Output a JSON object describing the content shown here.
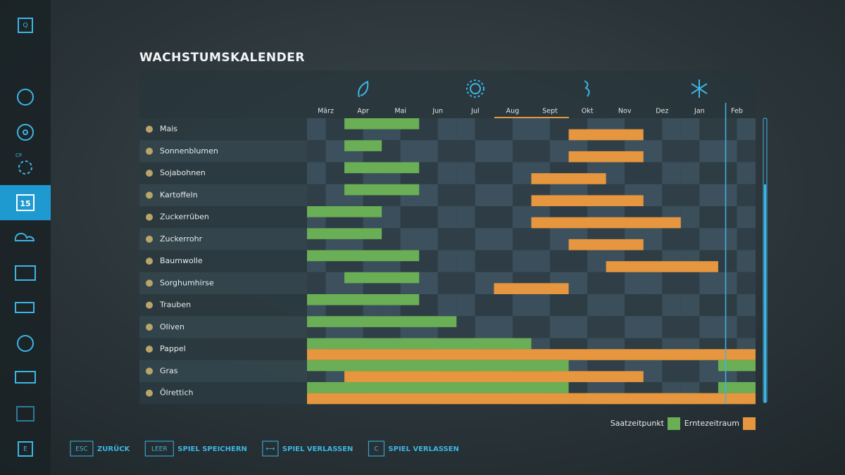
{
  "header": {
    "title": "WACHSTUMSKALENDER"
  },
  "months": [
    "März",
    "Apr",
    "Mai",
    "Jun",
    "Jul",
    "Aug",
    "Sept",
    "Okt",
    "Nov",
    "Dez",
    "Jan",
    "Feb"
  ],
  "crops": [
    {
      "name": "Mais",
      "sowing": [
        [
          1,
          3
        ]
      ],
      "harvest": [
        [
          7,
          9
        ]
      ]
    },
    {
      "name": "Sonnenblumen",
      "sowing": [
        [
          1,
          2
        ]
      ],
      "harvest": [
        [
          7,
          9
        ]
      ]
    },
    {
      "name": "Sojabohnen",
      "sowing": [
        [
          1,
          3
        ]
      ],
      "harvest": [
        [
          6,
          8
        ]
      ]
    },
    {
      "name": "Kartoffeln",
      "sowing": [
        [
          1,
          3
        ]
      ],
      "harvest": [
        [
          6,
          9
        ]
      ]
    },
    {
      "name": "Zuckerrüben",
      "sowing": [
        [
          0,
          2
        ]
      ],
      "harvest": [
        [
          6,
          10
        ]
      ]
    },
    {
      "name": "Zuckerrohr",
      "sowing": [
        [
          0,
          2
        ]
      ],
      "harvest": [
        [
          7,
          9
        ]
      ]
    },
    {
      "name": "Baumwolle",
      "sowing": [
        [
          0,
          3
        ]
      ],
      "harvest": [
        [
          8,
          11
        ]
      ]
    },
    {
      "name": "Sorghumhirse",
      "sowing": [
        [
          1,
          3
        ]
      ],
      "harvest": [
        [
          5,
          7
        ]
      ]
    },
    {
      "name": "Trauben",
      "sowing": [
        [
          0,
          3
        ]
      ],
      "harvest": []
    },
    {
      "name": "Oliven",
      "sowing": [
        [
          0,
          4
        ]
      ],
      "harvest": []
    },
    {
      "name": "Pappel",
      "sowing": [
        [
          0,
          6
        ]
      ],
      "harvest": [
        [
          0,
          12
        ]
      ]
    },
    {
      "name": "Gras",
      "sowing": [
        [
          0,
          7
        ],
        [
          11,
          12
        ]
      ],
      "harvest": [
        [
          1,
          9
        ]
      ]
    },
    {
      "name": "Ölrettich",
      "sowing": [
        [
          0,
          7
        ],
        [
          11,
          12
        ]
      ],
      "harvest": [
        [
          0,
          12
        ]
      ]
    }
  ],
  "today": 11.2,
  "legend": {
    "sowing": "Saatzeitpunkt",
    "harvest": "Erntezeitraum",
    "sowing_color": "#6aae55",
    "harvest_color": "#e5963e"
  },
  "sidebar": {
    "top_key": "Q",
    "bottom_key": "E",
    "badge": "CP",
    "calendar_day": "15"
  },
  "footer": [
    {
      "key": "ESC",
      "label": "ZURÜCK"
    },
    {
      "key": "LEER",
      "label": "SPIEL SPEICHERN"
    },
    {
      "key": "⟷",
      "label": "SPIEL VERLASSEN"
    },
    {
      "key": "C",
      "label": "SPIEL VERLASSEN"
    }
  ]
}
